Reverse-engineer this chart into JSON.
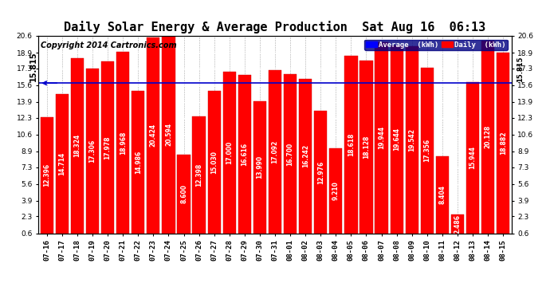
{
  "title": "Daily Solar Energy & Average Production  Sat Aug 16  06:13",
  "copyright": "Copyright 2014 Cartronics.com",
  "categories": [
    "07-16",
    "07-17",
    "07-18",
    "07-19",
    "07-20",
    "07-21",
    "07-22",
    "07-23",
    "07-24",
    "07-25",
    "07-26",
    "07-27",
    "07-28",
    "07-29",
    "07-30",
    "07-31",
    "08-01",
    "08-02",
    "08-03",
    "08-04",
    "08-05",
    "08-06",
    "08-07",
    "08-08",
    "08-09",
    "08-10",
    "08-11",
    "08-12",
    "08-13",
    "08-14",
    "08-15"
  ],
  "values": [
    12.396,
    14.714,
    18.324,
    17.306,
    17.978,
    18.968,
    14.986,
    20.424,
    20.594,
    8.6,
    12.398,
    15.03,
    17.0,
    16.616,
    13.99,
    17.092,
    16.7,
    16.242,
    12.976,
    9.21,
    18.618,
    18.128,
    19.944,
    19.644,
    19.542,
    17.356,
    8.404,
    2.486,
    15.944,
    20.128,
    18.882
  ],
  "average": 15.815,
  "bar_color": "#ff0000",
  "bar_edge_color": "#cc0000",
  "average_line_color": "#0000cc",
  "background_color": "#ffffff",
  "grid_color": "#ffffff",
  "ylim_min": 0.6,
  "ylim_max": 20.6,
  "yticks": [
    0.6,
    2.3,
    3.9,
    5.6,
    7.3,
    8.9,
    10.6,
    12.3,
    13.9,
    15.6,
    17.3,
    18.9,
    20.6
  ],
  "legend_avg_label": "Average  (kWh)",
  "legend_daily_label": "Daily  (kWh)",
  "avg_label_text": "15.815",
  "title_fontsize": 11,
  "tick_fontsize": 6.5,
  "bar_label_fontsize": 5.5,
  "copyright_fontsize": 7
}
